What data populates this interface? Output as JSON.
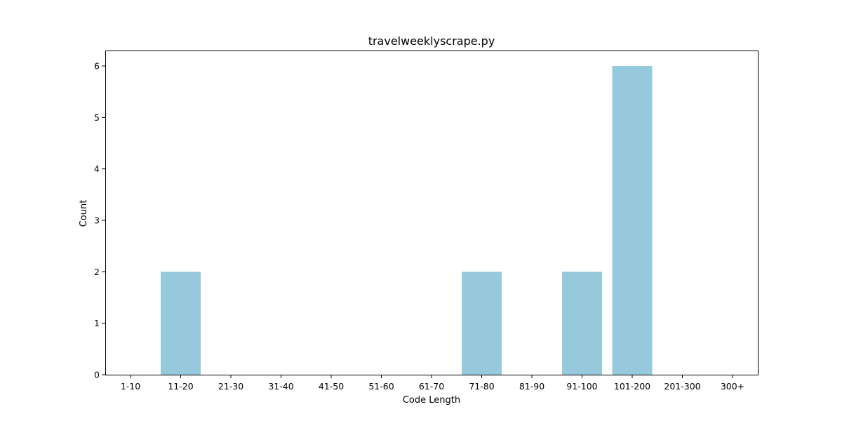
{
  "chart_data": {
    "type": "bar",
    "title": "travelweeklyscrape.py",
    "xlabel": "Code Length",
    "ylabel": "Count",
    "categories": [
      "1-10",
      "11-20",
      "21-30",
      "31-40",
      "41-50",
      "51-60",
      "61-70",
      "71-80",
      "81-90",
      "91-100",
      "101-200",
      "201-300",
      "300+"
    ],
    "values": [
      0,
      2,
      0,
      0,
      0,
      0,
      0,
      2,
      0,
      2,
      6,
      0,
      0
    ],
    "ylim": [
      0,
      6.3
    ],
    "yticks": [
      0,
      1,
      2,
      3,
      4,
      5,
      6
    ],
    "bar_color": "#96c9dc",
    "grid": false,
    "legend": "none"
  }
}
